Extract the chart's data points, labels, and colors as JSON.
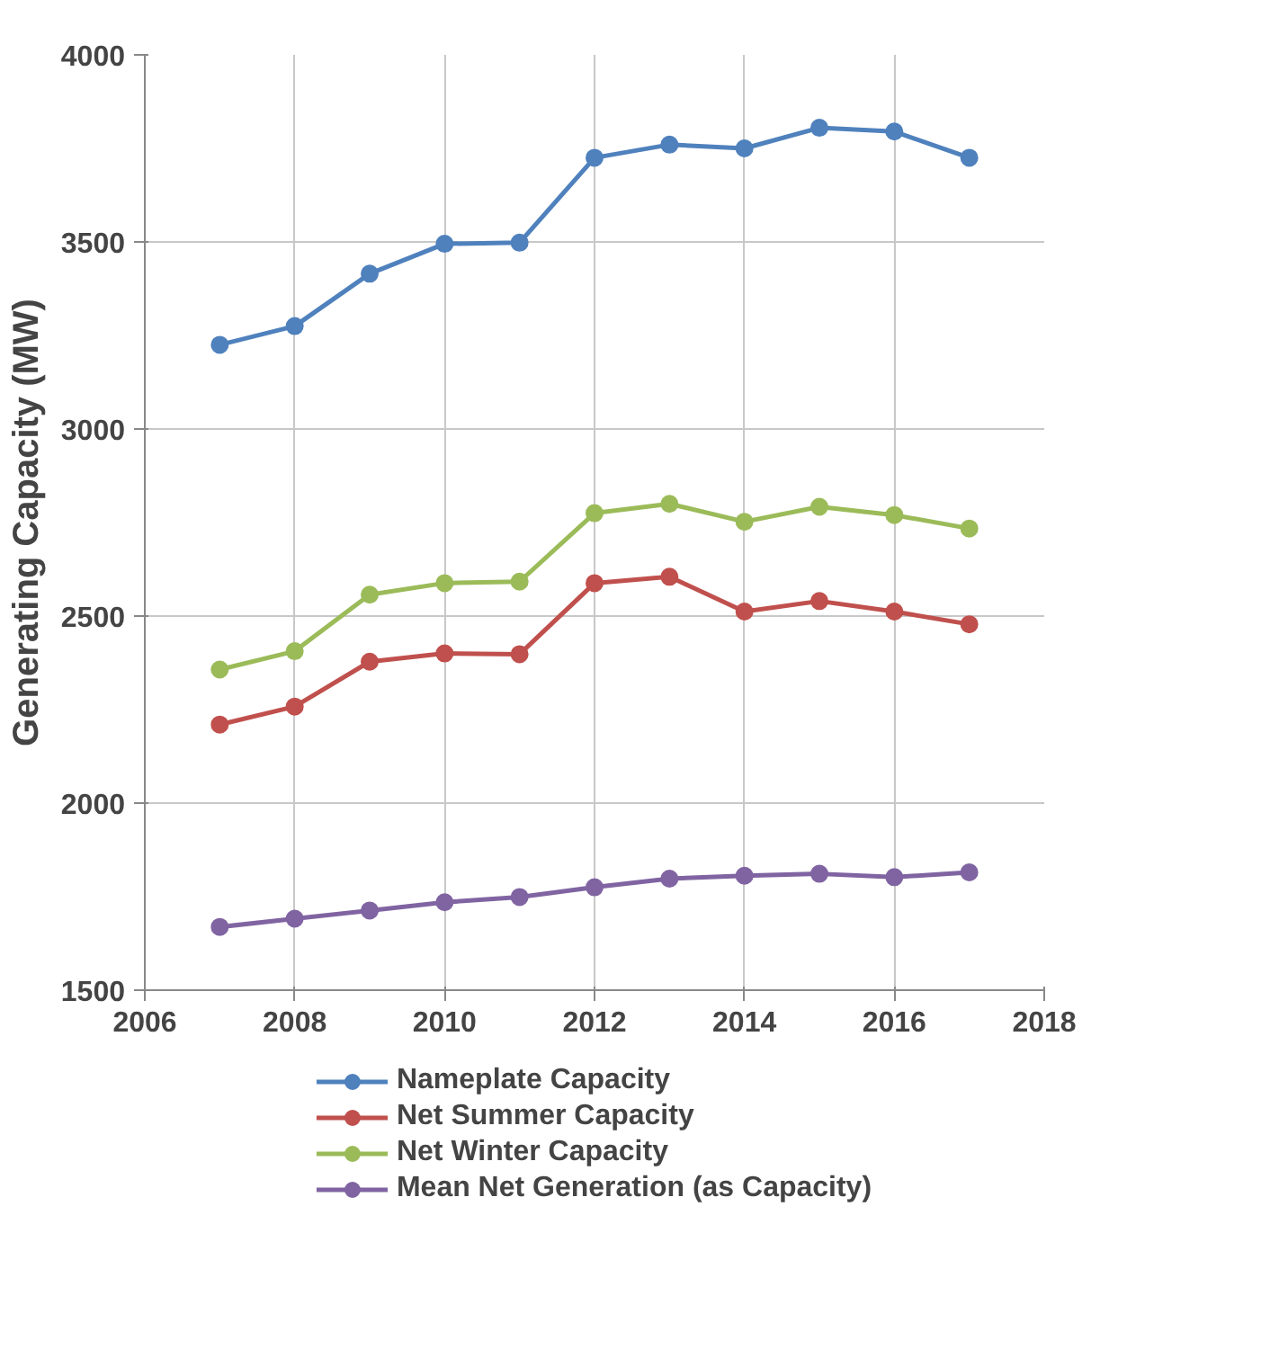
{
  "chart_data": {
    "type": "line",
    "ylabel": "Generating Capacity (MW)",
    "x": [
      2007,
      2008,
      2009,
      2010,
      2011,
      2012,
      2013,
      2014,
      2015,
      2016,
      2017
    ],
    "xlim": [
      2006,
      2018
    ],
    "xticks": [
      2006,
      2008,
      2010,
      2012,
      2014,
      2016,
      2018
    ],
    "ylim": [
      1500,
      4000
    ],
    "yticks": [
      1500,
      2000,
      2500,
      3000,
      3500,
      4000
    ],
    "grid": true,
    "legend": "bottom",
    "marker": "circle",
    "line_style": "solid",
    "series": [
      {
        "name": "Nameplate Capacity",
        "color": "#4f81bd",
        "values": [
          3225,
          3275,
          3415,
          3495,
          3498,
          3725,
          3760,
          3750,
          3805,
          3795,
          3725
        ]
      },
      {
        "name": "Net Summer Capacity",
        "color": "#c0504d",
        "values": [
          2210,
          2258,
          2378,
          2400,
          2398,
          2588,
          2605,
          2512,
          2540,
          2512,
          2478
        ]
      },
      {
        "name": "Net Winter Capacity",
        "color": "#9bbb59",
        "values": [
          2357,
          2406,
          2557,
          2588,
          2592,
          2775,
          2800,
          2752,
          2792,
          2770,
          2734
        ]
      },
      {
        "name": "Mean Net Generation (as Capacity)",
        "color": "#8064a2",
        "values": [
          1669,
          1691,
          1713,
          1735,
          1749,
          1775,
          1798,
          1806,
          1811,
          1802,
          1815
        ]
      }
    ]
  }
}
